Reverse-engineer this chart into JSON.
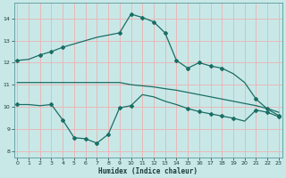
{
  "bg_color": "#c8e8e8",
  "grid_color": "#e8b8b8",
  "line_color": "#1a6e64",
  "xlim": [
    -0.3,
    23.3
  ],
  "ylim": [
    7.7,
    14.7
  ],
  "xlabel": "Humidex (Indice chaleur)",
  "xticks": [
    0,
    1,
    2,
    3,
    4,
    5,
    6,
    7,
    8,
    9,
    10,
    11,
    12,
    13,
    14,
    15,
    16,
    17,
    18,
    19,
    20,
    21,
    22,
    23
  ],
  "yticks": [
    8,
    9,
    10,
    11,
    12,
    13,
    14
  ],
  "series1_x": [
    0,
    1,
    2,
    3,
    4,
    5,
    6,
    7,
    8,
    9,
    10,
    11,
    12,
    13,
    14,
    15,
    16,
    17,
    18,
    19,
    20,
    21,
    22,
    23
  ],
  "series1_y": [
    12.1,
    12.15,
    12.35,
    12.5,
    12.7,
    12.85,
    13.0,
    13.15,
    13.25,
    13.35,
    14.2,
    14.05,
    13.85,
    13.35,
    12.1,
    11.75,
    12.0,
    11.85,
    11.75,
    11.5,
    11.1,
    10.35,
    9.9,
    9.6
  ],
  "series2_x": [
    0,
    1,
    2,
    3,
    4,
    5,
    6,
    7,
    8,
    9,
    10,
    11,
    12,
    13,
    14,
    15,
    16,
    17,
    18,
    19,
    20,
    21,
    22,
    23
  ],
  "series2_y": [
    11.1,
    11.1,
    11.1,
    11.1,
    11.1,
    11.1,
    11.1,
    11.1,
    11.1,
    11.1,
    11.0,
    10.95,
    10.9,
    10.82,
    10.75,
    10.65,
    10.55,
    10.45,
    10.35,
    10.25,
    10.15,
    10.05,
    9.92,
    9.75
  ],
  "series3_x": [
    0,
    1,
    2,
    3,
    4,
    5,
    6,
    7,
    8,
    9,
    10,
    11,
    12,
    13,
    14,
    15,
    16,
    17,
    18,
    19,
    20,
    21,
    22,
    23
  ],
  "series3_y": [
    10.1,
    10.1,
    10.05,
    10.1,
    9.4,
    8.6,
    8.55,
    8.35,
    8.75,
    9.95,
    10.05,
    10.55,
    10.45,
    10.25,
    10.1,
    9.92,
    9.78,
    9.68,
    9.58,
    9.48,
    9.35,
    9.85,
    9.75,
    9.55
  ],
  "marker1_x": [
    0,
    2,
    3,
    4,
    9,
    10,
    11,
    12,
    13,
    14,
    15,
    16,
    17,
    18,
    21,
    22,
    23
  ],
  "marker1_y": [
    12.1,
    12.35,
    12.5,
    12.7,
    13.35,
    14.2,
    14.05,
    13.85,
    13.35,
    12.1,
    11.75,
    12.0,
    11.85,
    11.75,
    10.35,
    9.9,
    9.6
  ],
  "marker3_x": [
    0,
    3,
    4,
    5,
    6,
    7,
    8,
    9,
    10,
    15,
    16,
    17,
    18,
    19,
    21,
    22,
    23
  ],
  "marker3_y": [
    10.1,
    10.1,
    9.4,
    8.6,
    8.55,
    8.35,
    8.75,
    9.95,
    10.05,
    9.92,
    9.78,
    9.68,
    9.58,
    9.48,
    9.85,
    9.75,
    9.55
  ]
}
